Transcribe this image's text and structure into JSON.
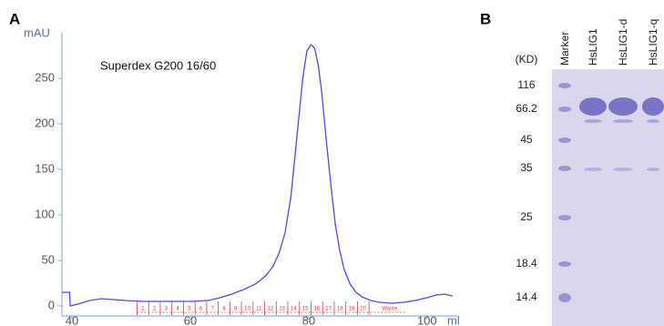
{
  "chart_data": {
    "type": "line",
    "panel_label": "A",
    "annotation": "Superdex G200 16/60",
    "ylabel": "mAU",
    "xlabel": "ml",
    "x": [
      38.3,
      39.6,
      39.7,
      41,
      43,
      45,
      47,
      49,
      52,
      56,
      60,
      63,
      65,
      67,
      69,
      71,
      72,
      73,
      74,
      75,
      76,
      77,
      78,
      79,
      79.7,
      80.4,
      81,
      81.6,
      82.2,
      83,
      83.8,
      84.5,
      85.2,
      86,
      87,
      88,
      89,
      90.5,
      92,
      94,
      96,
      98,
      100,
      101.5,
      103,
      104.3
    ],
    "values": [
      15,
      15,
      0,
      2,
      6,
      8,
      7,
      6,
      5,
      5,
      5,
      6,
      9,
      13,
      18,
      24,
      29,
      35,
      44,
      58,
      80,
      120,
      185,
      250,
      280,
      287,
      283,
      265,
      235,
      180,
      130,
      90,
      62,
      40,
      24,
      15,
      10,
      6,
      4,
      3,
      4,
      6,
      9,
      12,
      13,
      11
    ],
    "color": "#4b4be6",
    "xlim": [
      38.3,
      104.8
    ],
    "ylim": [
      -11,
      300
    ],
    "xticks": [
      40,
      60,
      80,
      100
    ],
    "yticks": [
      0,
      50,
      100,
      150,
      200,
      250
    ],
    "fractions": {
      "color": "#e8393a",
      "labels": [
        "1",
        "2",
        "3",
        "4",
        "5",
        "6",
        "7",
        "8",
        "9",
        "10",
        "11",
        "12",
        "13",
        "14",
        "15",
        "16",
        "17",
        "18",
        "19",
        "20",
        "Waste"
      ],
      "x": [
        51,
        52.96,
        54.92,
        56.88,
        58.84,
        60.8,
        62.76,
        64.72,
        66.68,
        68.64,
        70.6,
        72.56,
        74.52,
        76.48,
        78.44,
        80.4,
        82.36,
        84.32,
        86.28,
        88.24,
        90.2
      ]
    }
  },
  "gel": {
    "panel_label": "B",
    "unit_label": "(KD)",
    "lanes": [
      "Marker",
      "HsLIG1",
      "HsLIG1-d",
      "HsLIG1-q"
    ],
    "markers": [
      116,
      66.2,
      45,
      35,
      25,
      18.4,
      14.4
    ]
  }
}
